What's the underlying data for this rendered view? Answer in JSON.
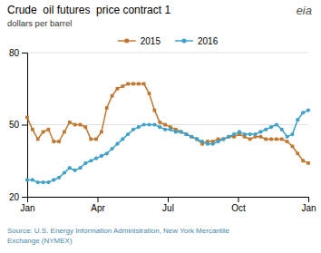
{
  "chart_data": {
    "type": "line",
    "title": "Crude  oil futures  price contract 1",
    "subtitle": "dollars per barrel",
    "source": "Source: U.S. Energy Information Administration, New York Mercantile\nExchange (NYMEX)",
    "annotations": [
      {
        "text": "eia"
      }
    ],
    "x": [
      0,
      0.22642,
      0.45283,
      0.67925,
      0.90566,
      1.13208,
      1.35849,
      1.58491,
      1.81132,
      2.03774,
      2.26415,
      2.49057,
      2.71698,
      2.9434,
      3.16981,
      3.39623,
      3.62264,
      3.84906,
      4.07547,
      4.30189,
      4.5283,
      4.75472,
      4.98113,
      5.20755,
      5.43396,
      5.66038,
      5.88679,
      6.11321,
      6.33962,
      6.56604,
      6.79245,
      7.01887,
      7.24528,
      7.4717,
      7.69811,
      7.92453,
      8.15094,
      8.37736,
      8.60377,
      8.83019,
      9.0566,
      9.28302,
      9.50943,
      9.73585,
      9.96226,
      10.18868,
      10.41509,
      10.64151,
      10.86792,
      11.09434,
      11.32075,
      11.54717,
      11.77358,
      12
    ],
    "xlim": [
      0,
      12
    ],
    "xticks": [
      {
        "value": 0,
        "label": "Jan"
      },
      {
        "value": 3,
        "label": "Apr"
      },
      {
        "value": 6,
        "label": "Jul"
      },
      {
        "value": 9,
        "label": "Oct"
      },
      {
        "value": 12,
        "label": "Jan"
      }
    ],
    "ylim": [
      20,
      80
    ],
    "yticks": [
      20,
      50,
      80
    ],
    "grid": true,
    "legend": "top",
    "series": [
      {
        "name": "2015",
        "color": "#C07830",
        "marker": "square",
        "values": [
          53,
          48,
          44,
          47,
          48,
          43,
          43,
          47,
          51,
          50,
          50,
          49,
          44,
          44,
          47,
          57,
          62,
          65,
          66,
          67,
          67,
          67,
          67,
          63,
          56,
          51,
          50,
          49,
          48,
          47,
          46,
          45,
          44,
          42,
          43,
          43,
          44,
          44,
          45,
          45,
          46,
          45,
          44,
          45,
          45,
          44,
          44,
          44,
          44,
          43,
          41,
          38,
          35,
          34
        ]
      },
      {
        "name": "2016",
        "color": "#3FA0C8",
        "marker": "circle",
        "values": [
          27,
          27,
          26,
          26,
          26,
          27,
          28,
          30,
          32,
          31,
          32,
          34,
          35,
          36,
          37,
          38,
          40,
          42,
          44,
          46,
          48,
          49,
          50,
          50,
          50,
          49,
          48,
          48,
          47,
          47,
          46,
          45,
          44,
          43,
          42,
          42,
          43,
          44,
          45,
          46,
          47,
          46,
          46,
          46,
          47,
          48,
          49,
          50,
          48,
          45,
          46,
          52,
          55,
          56
        ]
      }
    ]
  }
}
